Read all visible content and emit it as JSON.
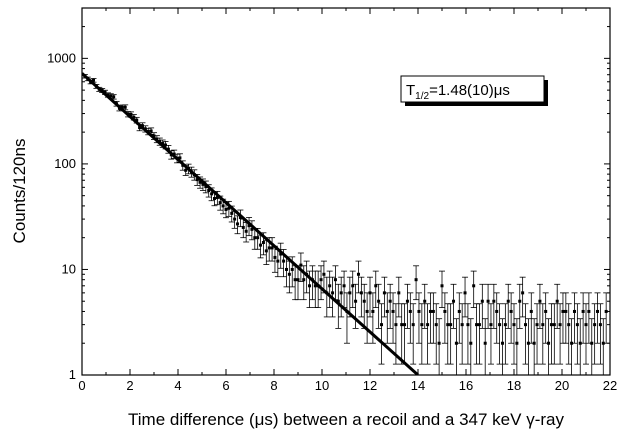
{
  "chart_data": {
    "type": "scatter",
    "title": "",
    "xlabel": "Time difference (μs) between a recoil and a 347 keV γ-ray",
    "ylabel": "Counts/120ns",
    "xlim": [
      0,
      22
    ],
    "ylim": [
      1,
      3000
    ],
    "yscale": "log",
    "grid": false,
    "x_ticks": [
      "0",
      "2",
      "4",
      "6",
      "8",
      "10",
      "12",
      "14",
      "16",
      "18",
      "20",
      "22"
    ],
    "y_ticks": [
      "1",
      "10",
      "100",
      "1000"
    ],
    "annotation": {
      "main": "T",
      "subscript": "1/2",
      "rest": "=1.48(10)μs"
    },
    "fit": {
      "name": "exponential fit",
      "x": [
        0,
        14
      ],
      "y": [
        720,
        1
      ]
    },
    "series": [
      {
        "name": "data",
        "x": [
          0.12,
          0.24,
          0.36,
          0.48,
          0.6,
          0.72,
          0.84,
          0.96,
          1.08,
          1.2,
          1.32,
          1.44,
          1.56,
          1.68,
          1.8,
          1.92,
          2.04,
          2.16,
          2.28,
          2.4,
          2.52,
          2.64,
          2.76,
          2.88,
          3.0,
          3.12,
          3.24,
          3.36,
          3.48,
          3.6,
          3.72,
          3.84,
          3.96,
          4.08,
          4.2,
          4.32,
          4.44,
          4.56,
          4.68,
          4.8,
          4.92,
          5.04,
          5.16,
          5.28,
          5.4,
          5.52,
          5.64,
          5.76,
          5.88,
          6.0,
          6.12,
          6.24,
          6.36,
          6.48,
          6.6,
          6.72,
          6.84,
          6.96,
          7.08,
          7.2,
          7.32,
          7.44,
          7.56,
          7.68,
          7.8,
          7.92,
          8.04,
          8.16,
          8.28,
          8.4,
          8.52,
          8.64,
          8.76,
          8.88,
          9.0,
          9.12,
          9.24,
          9.36,
          9.48,
          9.6,
          9.72,
          9.84,
          9.96,
          10.08,
          10.2,
          10.32,
          10.44,
          10.56,
          10.68,
          10.8,
          10.92,
          11.04,
          11.16,
          11.28,
          11.4,
          11.52,
          11.64,
          11.76,
          11.88,
          12.0,
          12.12,
          12.24,
          12.36,
          12.48,
          12.6,
          12.72,
          12.84,
          12.96,
          13.08,
          13.2,
          13.32,
          13.44,
          13.56,
          13.68,
          13.8,
          13.92,
          14.04,
          14.16,
          14.28,
          14.4,
          14.52,
          14.64,
          14.76,
          14.88,
          15.0,
          15.12,
          15.24,
          15.36,
          15.48,
          15.6,
          15.72,
          15.84,
          15.96,
          16.08,
          16.2,
          16.32,
          16.44,
          16.56,
          16.68,
          16.8,
          16.92,
          17.04,
          17.16,
          17.28,
          17.4,
          17.52,
          17.64,
          17.76,
          17.88,
          18.0,
          18.12,
          18.24,
          18.36,
          18.48,
          18.6,
          18.72,
          18.84,
          18.96,
          19.08,
          19.2,
          19.32,
          19.44,
          19.56,
          19.68,
          19.8,
          19.92,
          20.04,
          20.16,
          20.28,
          20.4,
          20.52,
          20.64,
          20.76,
          20.88,
          21.0,
          21.12,
          21.24,
          21.36,
          21.48,
          21.6,
          21.72,
          21.84
        ],
        "y": [
          677,
          639,
          598,
          620,
          543,
          509,
          497,
          477,
          450,
          441,
          432,
          372,
          336,
          343,
          344,
          296,
          294,
          277,
          260,
          221,
          230,
          215,
          203,
          205,
          184,
          172,
          163,
          156,
          151,
          138,
          122,
          124,
          113,
          114,
          97,
          87,
          90,
          84,
          79,
          71,
          67,
          64,
          61,
          56,
          52,
          47,
          48,
          43,
          40,
          37,
          38,
          34,
          30,
          27,
          31,
          25,
          23,
          26,
          24,
          20,
          20,
          17,
          18,
          15,
          16,
          16,
          13,
          12,
          14,
          12,
          10,
          9,
          10,
          8,
          8,
          11,
          8,
          9,
          7,
          8,
          7,
          7,
          8,
          9,
          6,
          7,
          6,
          8,
          5,
          6,
          7,
          4,
          6,
          7,
          5,
          9,
          6,
          5,
          4,
          6,
          4,
          7,
          5,
          3,
          6,
          4,
          5,
          4,
          3,
          6,
          3,
          3,
          5,
          4,
          3,
          8,
          4,
          3,
          5,
          3,
          4,
          4,
          3,
          2,
          7,
          4,
          3,
          3,
          5,
          2,
          4,
          3,
          6,
          3,
          2,
          7,
          3,
          3,
          5,
          2,
          5,
          3,
          5,
          4,
          3,
          2,
          3,
          5,
          4,
          3,
          2,
          5,
          6,
          3,
          2,
          4,
          2,
          3,
          5,
          3,
          4,
          2,
          3,
          3,
          5,
          3,
          4,
          4,
          3,
          2,
          4,
          3,
          2,
          4,
          3,
          4,
          2,
          3,
          4,
          3,
          2,
          4
        ]
      }
    ]
  }
}
